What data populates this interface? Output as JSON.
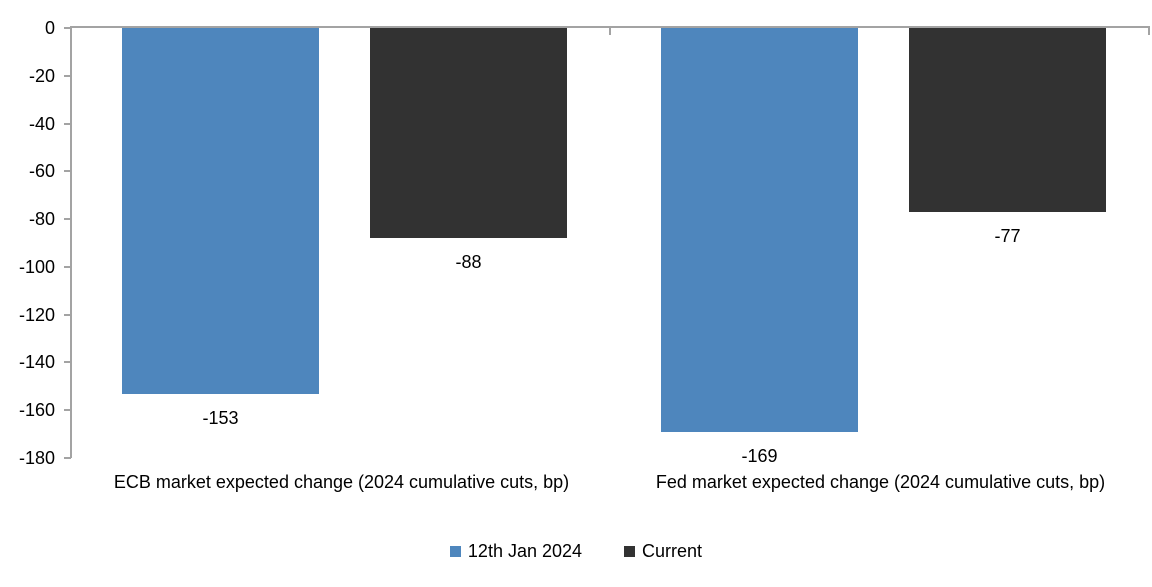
{
  "chart_data": {
    "type": "bar",
    "title": "",
    "xlabel": "",
    "ylabel": "",
    "categories": [
      "ECB market expected change (2024 cumulative cuts, bp)",
      "Fed market expected change (2024 cumulative cuts, bp)"
    ],
    "series": [
      {
        "name": "12th Jan 2024",
        "color": "#4e86bd",
        "values": [
          -153,
          -169
        ]
      },
      {
        "name": "Current",
        "color": "#323232",
        "values": [
          -88,
          -77
        ]
      }
    ],
    "y_ticks": [
      0,
      -20,
      -40,
      -60,
      -80,
      -100,
      -120,
      -140,
      -160,
      -180
    ],
    "ylim": [
      -180,
      0
    ],
    "grid": false,
    "data_labels": true,
    "legend_position": "bottom",
    "axis_color": "#a3a3a3"
  }
}
